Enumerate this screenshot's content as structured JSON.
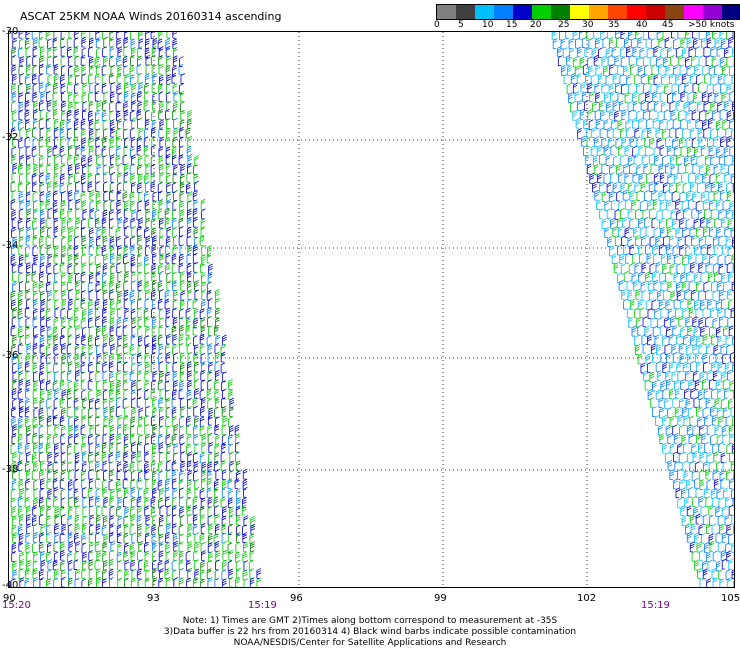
{
  "title": "ASCAT 25KM NOAA Winds 20160314 ascending",
  "legend": {
    "colors": [
      "#808080",
      "#404040",
      "#00bfff",
      "#0080ff",
      "#0000cd",
      "#00cc00",
      "#008000",
      "#ffff00",
      "#ffa500",
      "#ff4500",
      "#ff0000",
      "#cc0000",
      "#8b4513",
      "#ff00ff",
      "#9400d3",
      "#000080"
    ],
    "labels": [
      "0",
      "5",
      "10",
      "15",
      "20",
      "25",
      "30",
      "35",
      "40",
      "45",
      ">50 knots"
    ]
  },
  "axes": {
    "lat_labels": [
      "-30",
      "-32",
      "-34",
      "-36",
      "-38",
      "-40"
    ],
    "lon_labels": [
      "90",
      "93",
      "96",
      "99",
      "102",
      "105"
    ]
  },
  "times": {
    "left_start": "15:20",
    "left_end": "15:19",
    "right_end": "15:19"
  },
  "notes": {
    "line1": "Note: 1) Times are GMT 2)Times along bottom correspond to measurement at -35S",
    "line2": "3)Data buffer is 22 hrs from 20160314 4) Black wind barbs indicate possible contamination",
    "line3": "NOAA/NESDIS/Center for Satellite Applications and Research"
  },
  "swaths": {
    "left_colors": [
      "#008000",
      "#00cc00",
      "#00cc00",
      "#0000cd",
      "#0000cd",
      "#0080ff",
      "#00cc00",
      "#0000cd"
    ],
    "right_colors": [
      "#00bfff",
      "#0080ff",
      "#00cc00",
      "#0000cd",
      "#00bfff",
      "#0080ff"
    ]
  }
}
